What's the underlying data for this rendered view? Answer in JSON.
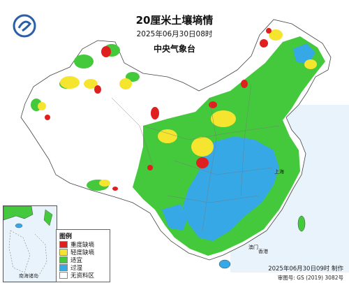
{
  "header": {
    "title": "20厘米土壤墒情",
    "datetime": "2025年06月30日08时",
    "agency": "中央气象台"
  },
  "legend": {
    "title": "图例",
    "items": [
      {
        "label": "重度缺墒",
        "color": "#e0201e"
      },
      {
        "label": "轻度缺墒",
        "color": "#f5e52f"
      },
      {
        "label": "适宜",
        "color": "#44c83c"
      },
      {
        "label": "过湿",
        "color": "#36a8e6"
      },
      {
        "label": "无资料区",
        "color": "#ffffff"
      }
    ]
  },
  "inset": {
    "label": "南海诸岛"
  },
  "footer": {
    "made": "2025年06月30日09时 制作",
    "approval": "审图号: GS (2019) 3082号"
  },
  "places": {
    "shanghai": "上海",
    "macau": "澳门",
    "hongkong": "香港"
  }
}
